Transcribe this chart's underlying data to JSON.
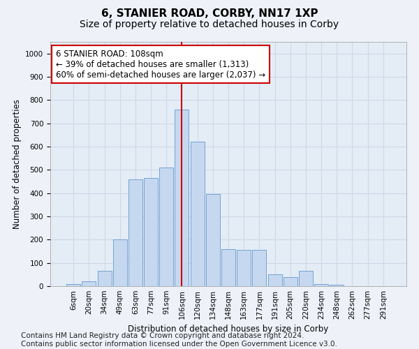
{
  "title": "6, STANIER ROAD, CORBY, NN17 1XP",
  "subtitle": "Size of property relative to detached houses in Corby",
  "xlabel": "Distribution of detached houses by size in Corby",
  "ylabel": "Number of detached properties",
  "categories": [
    "6sqm",
    "20sqm",
    "34sqm",
    "49sqm",
    "63sqm",
    "77sqm",
    "91sqm",
    "106sqm",
    "120sqm",
    "134sqm",
    "148sqm",
    "163sqm",
    "177sqm",
    "191sqm",
    "205sqm",
    "220sqm",
    "234sqm",
    "248sqm",
    "262sqm",
    "277sqm",
    "291sqm"
  ],
  "values": [
    10,
    20,
    65,
    200,
    460,
    465,
    510,
    760,
    620,
    395,
    160,
    155,
    155,
    50,
    40,
    65,
    10,
    5,
    0,
    0,
    0
  ],
  "bar_color": "#c5d8f0",
  "bar_edge_color": "#6699cc",
  "vline_x_index": 7,
  "vline_color": "#cc0000",
  "annotation_line1": "6 STANIER ROAD: 108sqm",
  "annotation_line2": "← 39% of detached houses are smaller (1,313)",
  "annotation_line3": "60% of semi-detached houses are larger (2,037) →",
  "annotation_box_color": "#ffffff",
  "annotation_box_edge_color": "#cc0000",
  "ylim": [
    0,
    1050
  ],
  "yticks": [
    0,
    100,
    200,
    300,
    400,
    500,
    600,
    700,
    800,
    900,
    1000
  ],
  "footnote": "Contains HM Land Registry data © Crown copyright and database right 2024.\nContains public sector information licensed under the Open Government Licence v3.0.",
  "bg_color": "#eef2f8",
  "plot_bg_color": "#e4ecf6",
  "grid_color": "#d0d8e8",
  "title_fontsize": 11,
  "subtitle_fontsize": 10,
  "axis_label_fontsize": 8.5,
  "tick_fontsize": 7.5,
  "annotation_fontsize": 8.5,
  "footnote_fontsize": 7.5
}
